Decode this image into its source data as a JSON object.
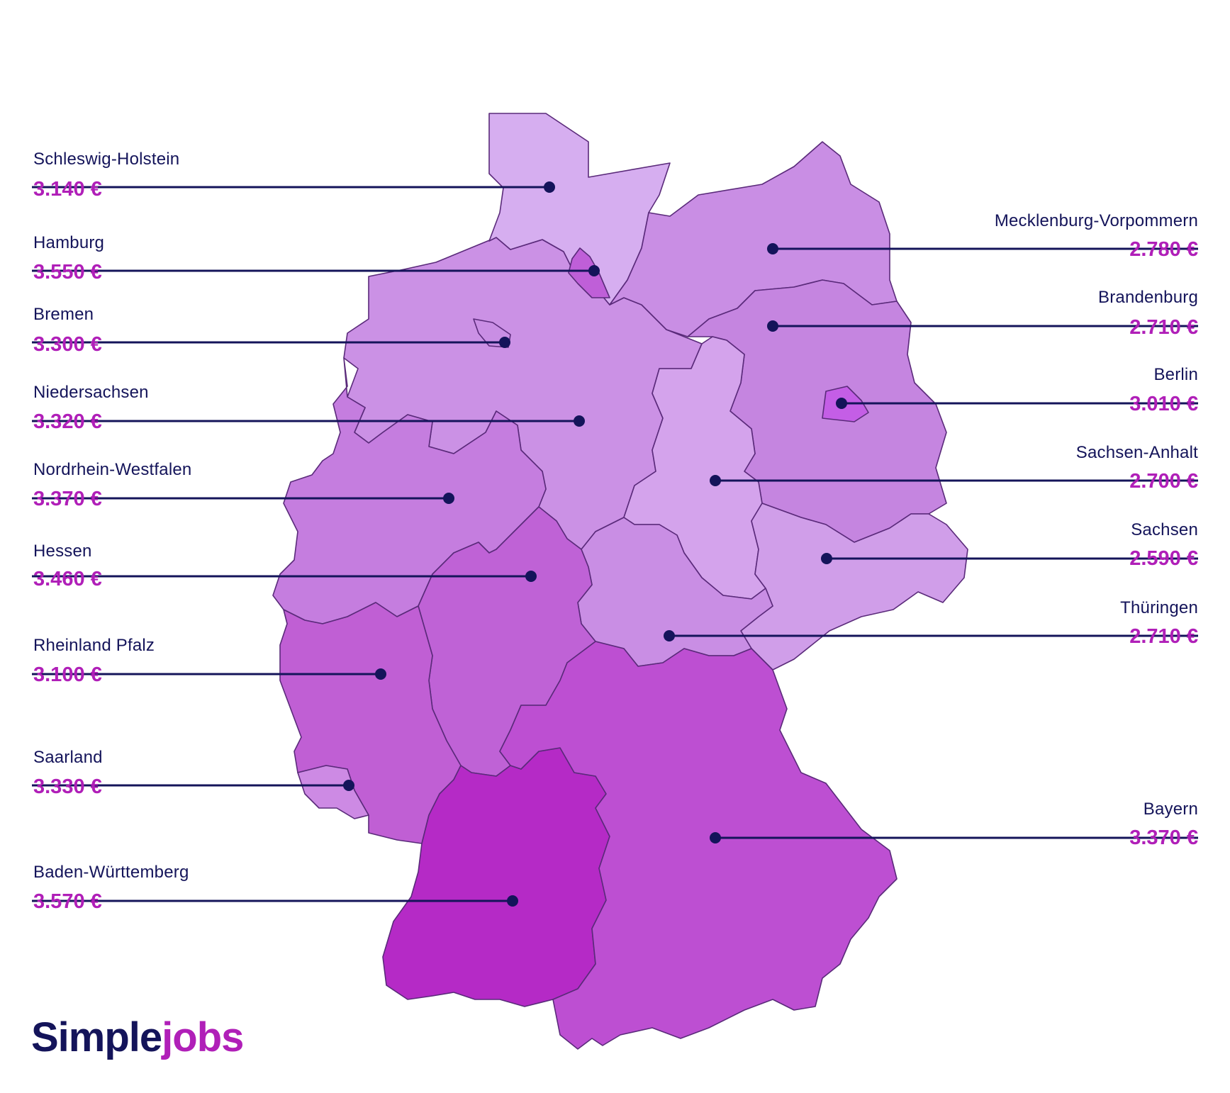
{
  "colors": {
    "line": "#14145a",
    "value": "#b01fb8",
    "logo_dark": "#14145a",
    "logo_accent": "#b01fb8",
    "outline": "#5a2a7a"
  },
  "brand": {
    "part1": "Simple",
    "part2": "jobs"
  },
  "states": [
    {
      "id": "schleswig-holstein",
      "name": "Schleswig-Holstein",
      "value": "3.140 €",
      "side": "left",
      "fill": "#d6aef0"
    },
    {
      "id": "hamburg",
      "name": "Hamburg",
      "value": "3.550 €",
      "side": "left",
      "fill": "#bf5fd8"
    },
    {
      "id": "bremen",
      "name": "Bremen",
      "value": "3.300 €",
      "side": "left",
      "fill": "#c98ee4"
    },
    {
      "id": "niedersachsen",
      "name": "Niedersachsen",
      "value": "3.320 €",
      "side": "left",
      "fill": "#cb91e5"
    },
    {
      "id": "nordrhein-westfalen",
      "name": "Nordrhein-Westfalen",
      "value": "3.370 €",
      "side": "left",
      "fill": "#c57ddf"
    },
    {
      "id": "hessen",
      "name": "Hessen",
      "value": "3.460 €",
      "side": "left",
      "fill": "#bf62d6"
    },
    {
      "id": "rheinland-pfalz",
      "name": "Rheinland Pfalz",
      "value": "3.100 €",
      "side": "left",
      "fill": "#c05fd4"
    },
    {
      "id": "saarland",
      "name": "Saarland",
      "value": "3.330 €",
      "side": "left",
      "fill": "#cd8ae4"
    },
    {
      "id": "baden-wuerttemberg",
      "name": "Baden-Württemberg",
      "value": "3.570 €",
      "side": "left",
      "fill": "#b52ac6"
    },
    {
      "id": "mecklenburg-vorpommern",
      "name": "Mecklenburg-Vorpommern",
      "value": "2.780 €",
      "side": "right",
      "fill": "#c98ee4"
    },
    {
      "id": "brandenburg",
      "name": "Brandenburg",
      "value": "2.710 €",
      "side": "right",
      "fill": "#c585e0"
    },
    {
      "id": "berlin",
      "name": "Berlin",
      "value": "3.010 €",
      "side": "right",
      "fill": "#c45ee6"
    },
    {
      "id": "sachsen-anhalt",
      "name": "Sachsen-Anhalt",
      "value": "2.700 €",
      "side": "right",
      "fill": "#d4a3ec"
    },
    {
      "id": "sachsen",
      "name": "Sachsen",
      "value": "2.590 €",
      "side": "right",
      "fill": "#d09ee9"
    },
    {
      "id": "thueringen",
      "name": "Thüringen",
      "value": "2.710 €",
      "side": "right",
      "fill": "#c98ee4"
    },
    {
      "id": "bayern",
      "name": "Bayern",
      "value": "3.370 €",
      "side": "right",
      "fill": "#bd4fd2"
    }
  ]
}
